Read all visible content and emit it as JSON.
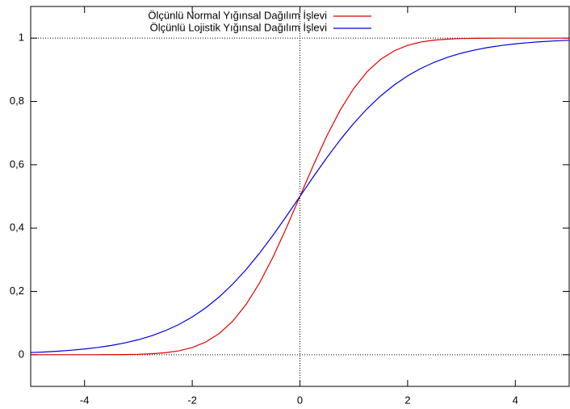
{
  "chart_data": {
    "type": "line",
    "x": [
      -5,
      -4.75,
      -4.5,
      -4.25,
      -4,
      -3.75,
      -3.5,
      -3.25,
      -3,
      -2.75,
      -2.5,
      -2.25,
      -2,
      -1.75,
      -1.5,
      -1.25,
      -1,
      -0.75,
      -0.5,
      -0.25,
      0,
      0.25,
      0.5,
      0.75,
      1,
      1.25,
      1.5,
      1.75,
      2,
      2.25,
      2.5,
      2.75,
      3,
      3.25,
      3.5,
      3.75,
      4,
      4.25,
      4.5,
      4.75,
      5
    ],
    "series": [
      {
        "name": "Ölçünlü Normal Yığınsal Dağılım İşlevi",
        "color": "#e00000",
        "values": [
          0.0,
          0.0,
          0.0,
          0.0,
          0.0,
          0.0001,
          0.0002,
          0.0006,
          0.0013,
          0.003,
          0.0062,
          0.0122,
          0.0228,
          0.0401,
          0.0668,
          0.1056,
          0.1587,
          0.2266,
          0.3085,
          0.4013,
          0.5,
          0.5987,
          0.6915,
          0.7734,
          0.8413,
          0.8944,
          0.9332,
          0.9599,
          0.9772,
          0.9878,
          0.9938,
          0.997,
          0.9987,
          0.9994,
          0.9998,
          0.9999,
          1.0,
          1.0,
          1.0,
          1.0,
          1.0
        ]
      },
      {
        "name": "Ölçünlü Lojistik Yığınsal Dağılım İşlevi",
        "color": "#0000e0",
        "values": [
          0.0067,
          0.0086,
          0.011,
          0.0141,
          0.018,
          0.023,
          0.0293,
          0.0373,
          0.0474,
          0.0601,
          0.0759,
          0.0953,
          0.1192,
          0.148,
          0.1824,
          0.2227,
          0.2689,
          0.3208,
          0.3775,
          0.4378,
          0.5,
          0.5622,
          0.6225,
          0.6792,
          0.7311,
          0.7773,
          0.8176,
          0.852,
          0.8808,
          0.9047,
          0.9241,
          0.9399,
          0.9526,
          0.9627,
          0.9707,
          0.977,
          0.982,
          0.9859,
          0.989,
          0.9914,
          0.9933
        ]
      }
    ],
    "xlim": [
      -5,
      5
    ],
    "ylim": [
      -0.1,
      1.1
    ],
    "xticks": [
      -4,
      -2,
      0,
      2,
      4
    ],
    "yticks": [
      0,
      {
        "value": 0.2,
        "label": "0,2"
      },
      {
        "value": 0.4,
        "label": "0,4"
      },
      {
        "value": 0.6,
        "label": "0,6"
      },
      {
        "value": 0.8,
        "label": "0,8"
      },
      1
    ],
    "zero_axes": true,
    "hline": 1,
    "legend": "top-left"
  }
}
